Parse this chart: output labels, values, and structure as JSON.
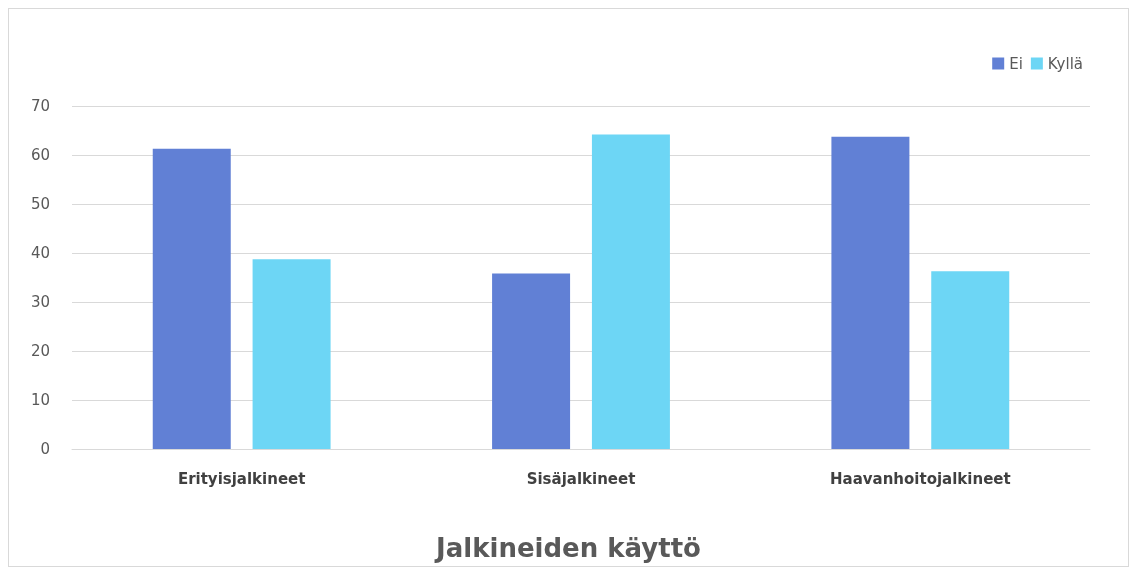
{
  "chart_data": {
    "type": "bar",
    "title": "Jalkineiden käyttö",
    "categories": [
      "Erityisjalkineet",
      "Sisäjalkineet",
      "Haavanhoitojalkineet"
    ],
    "series": [
      {
        "name": "Ei",
        "color": "#6180d5",
        "values": [
          61.3,
          35.8,
          63.7
        ]
      },
      {
        "name": "Kyllä",
        "color": "#6dd6f5",
        "values": [
          38.7,
          64.2,
          36.3
        ]
      }
    ],
    "ylim": [
      0,
      70
    ],
    "yticks": [
      0,
      10,
      20,
      30,
      40,
      50,
      60,
      70
    ],
    "grid": "y",
    "legend": "top right"
  }
}
